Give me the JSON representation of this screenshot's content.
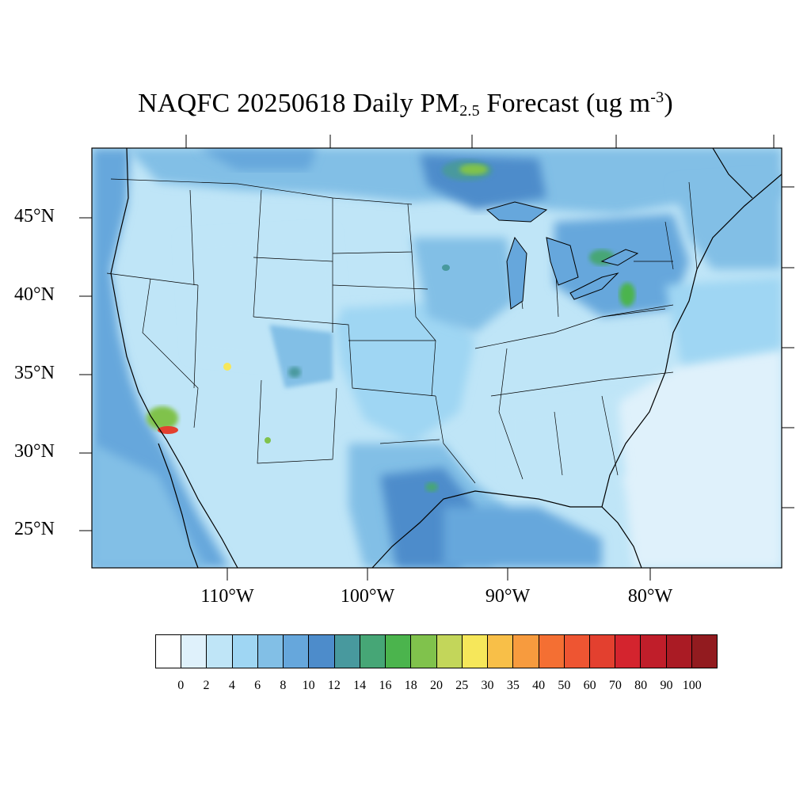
{
  "title": {
    "prefix": "NAQFC 20250618 Daily PM",
    "sub": "2.5",
    "middle": " Forecast (ug m",
    "sup": "-3",
    "suffix": ")"
  },
  "axes": {
    "lat_labels": [
      "45°N",
      "40°N",
      "35°N",
      "30°N",
      "25°N"
    ],
    "lon_labels": [
      "110°W",
      "100°W",
      "90°W",
      "80°W"
    ]
  },
  "colorbar": {
    "ticks": [
      "0",
      "2",
      "4",
      "6",
      "8",
      "10",
      "12",
      "14",
      "16",
      "18",
      "20",
      "25",
      "30",
      "35",
      "40",
      "50",
      "60",
      "70",
      "80",
      "90",
      "100"
    ],
    "colors": [
      "#ffffff",
      "#dff1fb",
      "#bfe5f7",
      "#9fd6f3",
      "#82bfe6",
      "#66a7dc",
      "#4d8ccb",
      "#48999e",
      "#46a676",
      "#4bb44d",
      "#80c24c",
      "#c3d65a",
      "#f6e75a",
      "#f8bf48",
      "#f79b3e",
      "#f46f33",
      "#ee5532",
      "#e3402f",
      "#d4242e",
      "#c01e2a",
      "#aa1b24",
      "#921b1f"
    ]
  },
  "map_palette": {
    "background": "#bfe5f7",
    "ocean_west": "#6aa9da",
    "gulf": "#4d8ccb",
    "atlantic_light": "#dff1fb",
    "atlantic_mid": "#9fd6f3",
    "canada": "#82bfe6",
    "hotspot_fire": "#e3402f",
    "hotspot_yellow": "#f6e75a",
    "hotspot_green": "#80c24c"
  }
}
